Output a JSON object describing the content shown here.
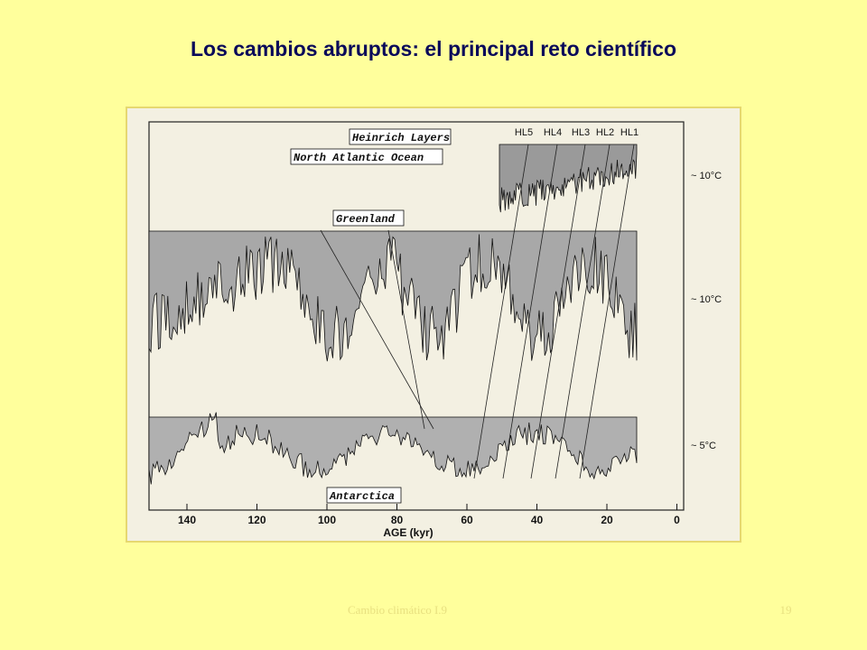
{
  "header": {
    "title": "Los cambios abruptos: el principal reto científico"
  },
  "figure": {
    "labels": [
      "Heinrich Layers",
      "North Atlantic Ocean",
      "Greenland",
      "Antarctica"
    ],
    "heinrich_layers": [
      "HL5",
      "HL4",
      "HL3",
      "HL2",
      "HL1"
    ],
    "temperature_notes": [
      "~ 10°C",
      "~ 10°C",
      "~ 5°C"
    ],
    "x_axis": {
      "label": "AGE (kyr)",
      "ticks": [
        "140",
        "120",
        "100",
        "80",
        "60",
        "40",
        "20",
        "0"
      ]
    }
  },
  "footer": {
    "left": "Cambio climático I.9",
    "page": "19"
  }
}
